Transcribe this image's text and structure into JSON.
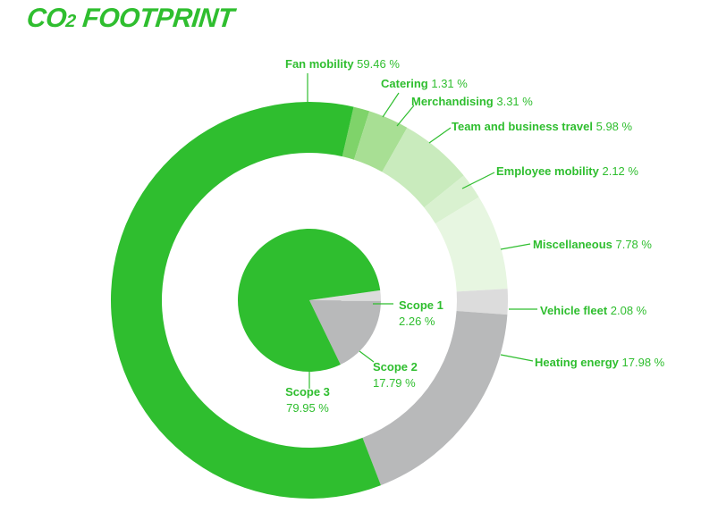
{
  "header": {
    "title_main": "CO",
    "title_sub": "2",
    "title_rest": " FOOTPRINT"
  },
  "chart_data": [
    {
      "type": "pie",
      "role": "inner",
      "slices": [
        {
          "name": "Scope 1",
          "value": 2.26,
          "value_label": "2.26 %",
          "color": "#dcdcdc"
        },
        {
          "name": "Scope 2",
          "value": 17.79,
          "value_label": "17.79 %",
          "color": "#b8b9ba"
        },
        {
          "name": "Scope 3",
          "value": 79.95,
          "value_label": "79.95 %",
          "color": "#2fbe2f"
        }
      ]
    },
    {
      "type": "pie",
      "role": "outer-ring",
      "slices": [
        {
          "name": "Catering",
          "value": 1.31,
          "value_label": "1.31 %",
          "color": "#7fd36a"
        },
        {
          "name": "Merchandising",
          "value": 3.31,
          "value_label": "3.31 %",
          "color": "#a8df94"
        },
        {
          "name": "Team and business travel",
          "value": 5.98,
          "value_label": "5.98 %",
          "color": "#c9ebbd"
        },
        {
          "name": "Employee mobility",
          "value": 2.12,
          "value_label": "2.12 %",
          "color": "#d9f1d0"
        },
        {
          "name": "Miscellaneous",
          "value": 7.78,
          "value_label": "7.78 %",
          "color": "#e7f6e1"
        },
        {
          "name": "Vehicle fleet",
          "value": 2.08,
          "value_label": "2.08 %",
          "color": "#dcdcdc"
        },
        {
          "name": "Heating energy",
          "value": 17.98,
          "value_label": "17.98 %",
          "color": "#b8b9ba"
        },
        {
          "name": "Fan mobility",
          "value": 59.46,
          "value_label": "59.46 %",
          "color": "#2fbe2f"
        }
      ]
    }
  ]
}
